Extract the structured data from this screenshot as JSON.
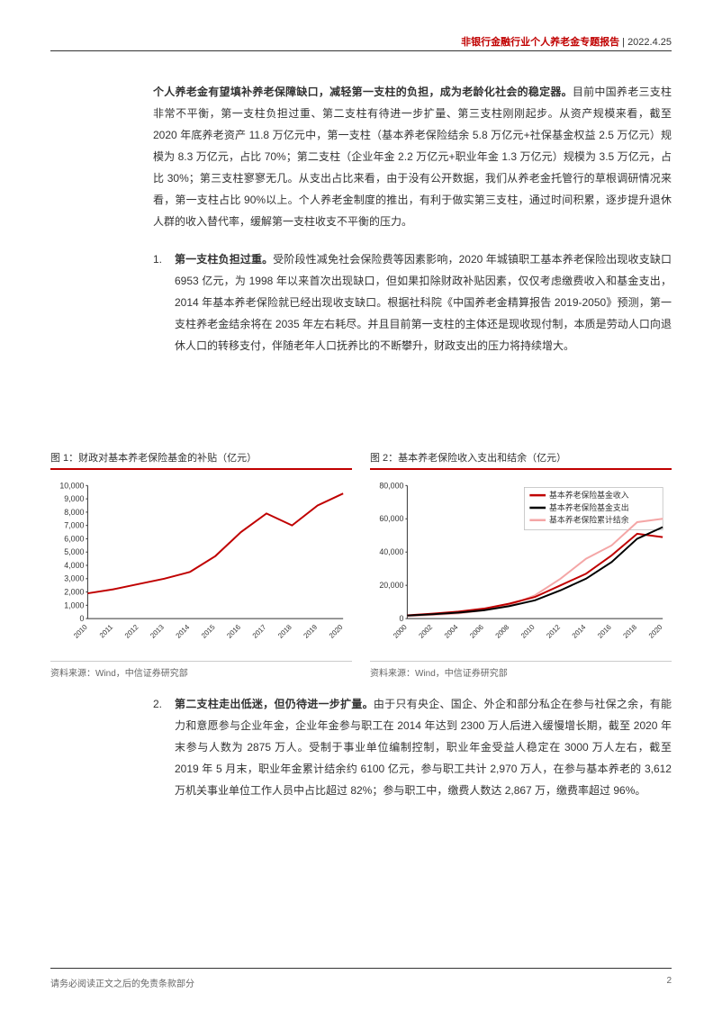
{
  "header": {
    "title": "非银行金融行业个人养老金专题报告",
    "separator": " | ",
    "date": "2022.4.25"
  },
  "intro_bold": "个人养老金有望填补养老保障缺口，减轻第一支柱的负担，成为老龄化社会的稳定器。",
  "intro_body": "目前中国养老三支柱非常不平衡，第一支柱负担过重、第二支柱有待进一步扩量、第三支柱刚刚起步。从资产规模来看，截至 2020 年底养老资产 11.8 万亿元中，第一支柱（基本养老保险结余 5.8 万亿元+社保基金权益 2.5 万亿元）规模为 8.3 万亿元，占比 70%；第二支柱（企业年金 2.2 万亿元+职业年金 1.3 万亿元）规模为 3.5 万亿元，占比 30%；第三支柱寥寥无几。从支出占比来看，由于没有公开数据，我们从养老金托管行的草根调研情况来看，第一支柱占比 90%以上。个人养老金制度的推出，有利于做实第三支柱，通过时间积累，逐步提升退休人群的收入替代率，缓解第一支柱收支不平衡的压力。",
  "item1_num": "1.",
  "item1_bold": "第一支柱负担过重。",
  "item1_body": "受阶段性减免社会保险费等因素影响，2020 年城镇职工基本养老保险出现收支缺口 6953 亿元，为 1998 年以来首次出现缺口，但如果扣除财政补贴因素，仅仅考虑缴费收入和基金支出，2014 年基本养老保险就已经出现收支缺口。根据社科院《中国养老金精算报告 2019-2050》预测，第一支柱养老金结余将在 2035 年左右耗尽。并且目前第一支柱的主体还是现收现付制，本质是劳动人口向退休人口的转移支付，伴随老年人口抚养比的不断攀升，财政支出的压力将持续增大。",
  "item2_num": "2.",
  "item2_bold": "第二支柱走出低迷，但仍待进一步扩量。",
  "item2_body": "由于只有央企、国企、外企和部分私企在参与社保之余，有能力和意愿参与企业年金，企业年金参与职工在 2014 年达到 2300 万人后进入缓慢增长期，截至 2020 年末参与人数为 2875 万人。受制于事业单位编制控制，职业年金受益人稳定在 3000 万人左右，截至 2019 年 5 月末，职业年金累计结余约 6100 亿元，参与职工共计 2,970 万人，在参与基本养老的 3,612 万机关事业单位工作人员中占比超过 82%；参与职工中，缴费人数达 2,867 万，缴费率超过 96%。",
  "chart1": {
    "type": "line",
    "title": "图 1：财政对基本养老保险基金的补贴（亿元）",
    "source": "资料来源：Wind，中信证券研究部",
    "x_labels": [
      "2010",
      "2011",
      "2012",
      "2013",
      "2014",
      "2015",
      "2016",
      "2017",
      "2018",
      "2019",
      "2020"
    ],
    "y_ticks": [
      0,
      1000,
      2000,
      3000,
      4000,
      5000,
      6000,
      7000,
      8000,
      9000,
      10000
    ],
    "values": [
      1900,
      2200,
      2600,
      3000,
      3500,
      4700,
      6500,
      7900,
      7000,
      8500,
      9400
    ],
    "ylim": [
      0,
      10000
    ],
    "line_color": "#c00000",
    "line_width": 2,
    "background_color": "#ffffff"
  },
  "chart2": {
    "type": "line-multi",
    "title": "图 2：基本养老保险收入支出和结余（亿元）",
    "source": "资料来源：Wind，中信证券研究部",
    "legend": [
      {
        "label": "基本养老保险基金收入",
        "color": "#c00000"
      },
      {
        "label": "基本养老保险基金支出",
        "color": "#000000"
      },
      {
        "label": "基本养老保险累计结余",
        "color": "#f4a6a6"
      }
    ],
    "x_labels": [
      "2000",
      "2002",
      "2004",
      "2006",
      "2008",
      "2010",
      "2012",
      "2014",
      "2016",
      "2018",
      "2020"
    ],
    "y_ticks": [
      0,
      20000,
      40000,
      60000,
      80000
    ],
    "ylim": [
      0,
      80000
    ],
    "series": {
      "income": [
        2000,
        3000,
        4200,
        6000,
        9000,
        13000,
        20000,
        27000,
        38000,
        51000,
        49000
      ],
      "expense": [
        1800,
        2600,
        3600,
        5000,
        7500,
        11000,
        17000,
        24000,
        34000,
        48000,
        55000
      ],
      "balance": [
        1500,
        2200,
        3100,
        5000,
        8000,
        14000,
        24000,
        36000,
        44000,
        58000,
        60000
      ]
    },
    "line_width": 2,
    "background_color": "#ffffff"
  },
  "footer": {
    "disclaimer": "请务必阅读正文之后的免责条款部分",
    "page_num": "2"
  }
}
